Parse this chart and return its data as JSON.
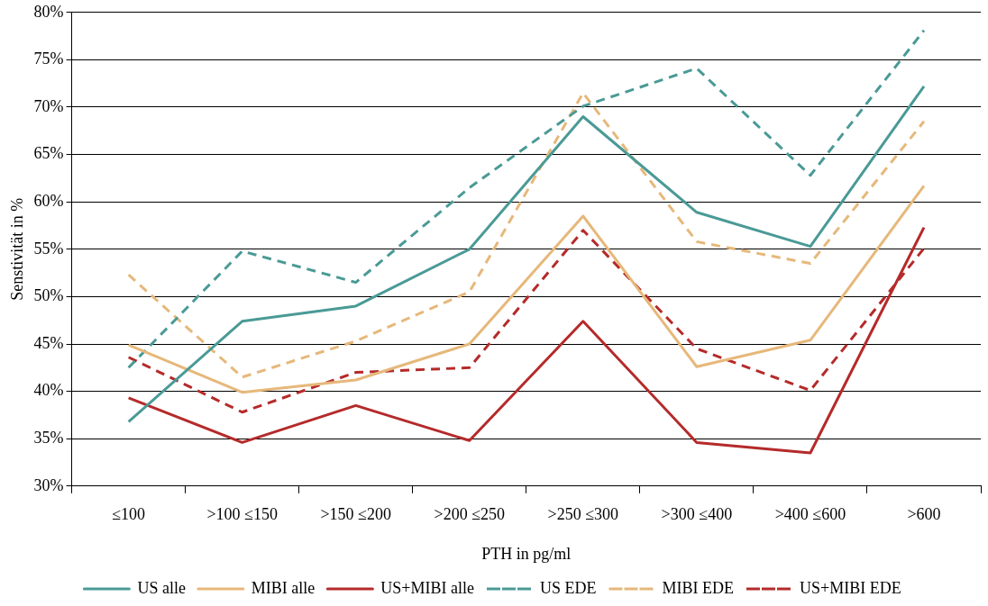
{
  "chart_data": {
    "type": "line",
    "xlabel": "PTH in pg/ml",
    "ylabel": "Senstivität in %",
    "categories": [
      "≤100",
      ">100 ≤150",
      ">150 ≤200",
      ">200 ≤250",
      ">250 ≤300",
      ">300 ≤400",
      ">400 ≤600",
      ">600"
    ],
    "ylim": [
      30,
      80
    ],
    "yticks": [
      {
        "value": 30,
        "label": "30%"
      },
      {
        "value": 35,
        "label": "35%"
      },
      {
        "value": 40,
        "label": "40%"
      },
      {
        "value": 45,
        "label": "45%"
      },
      {
        "value": 50,
        "label": "50%"
      },
      {
        "value": 55,
        "label": "55%"
      },
      {
        "value": 60,
        "label": "60%"
      },
      {
        "value": 65,
        "label": "65%"
      },
      {
        "value": 70,
        "label": "70%"
      },
      {
        "value": 75,
        "label": "75%"
      },
      {
        "value": 80,
        "label": "80%"
      }
    ],
    "grid": "y",
    "legend": "bottom",
    "marker": "none",
    "series": [
      {
        "name": "US alle",
        "color": "#4a9a96",
        "line_style": "solid",
        "values": [
          36.8,
          47.4,
          49.0,
          55.0,
          69.0,
          58.9,
          55.3,
          72.2
        ]
      },
      {
        "name": "MIBI alle",
        "color": "#e6b87a",
        "line_style": "solid",
        "values": [
          44.9,
          39.9,
          41.2,
          45.0,
          58.5,
          42.6,
          45.4,
          61.7
        ]
      },
      {
        "name": "US+MIBI alle",
        "color": "#b52a2a",
        "line_style": "solid",
        "values": [
          39.3,
          34.6,
          38.5,
          34.8,
          47.4,
          34.6,
          33.5,
          57.3
        ]
      },
      {
        "name": "US EDE",
        "color": "#4a9a96",
        "line_style": "dashed",
        "values": [
          42.5,
          54.8,
          51.5,
          61.5,
          70.1,
          74.1,
          62.8,
          78.1
        ]
      },
      {
        "name": "MIBI EDE",
        "color": "#e6b87a",
        "line_style": "dashed",
        "values": [
          52.3,
          41.5,
          45.3,
          50.5,
          71.5,
          55.8,
          53.5,
          68.5
        ]
      },
      {
        "name": "US+MIBI EDE",
        "color": "#b52a2a",
        "line_style": "dashed",
        "values": [
          43.6,
          37.8,
          42.0,
          42.5,
          57.0,
          44.5,
          40.1,
          55.1
        ]
      }
    ]
  }
}
